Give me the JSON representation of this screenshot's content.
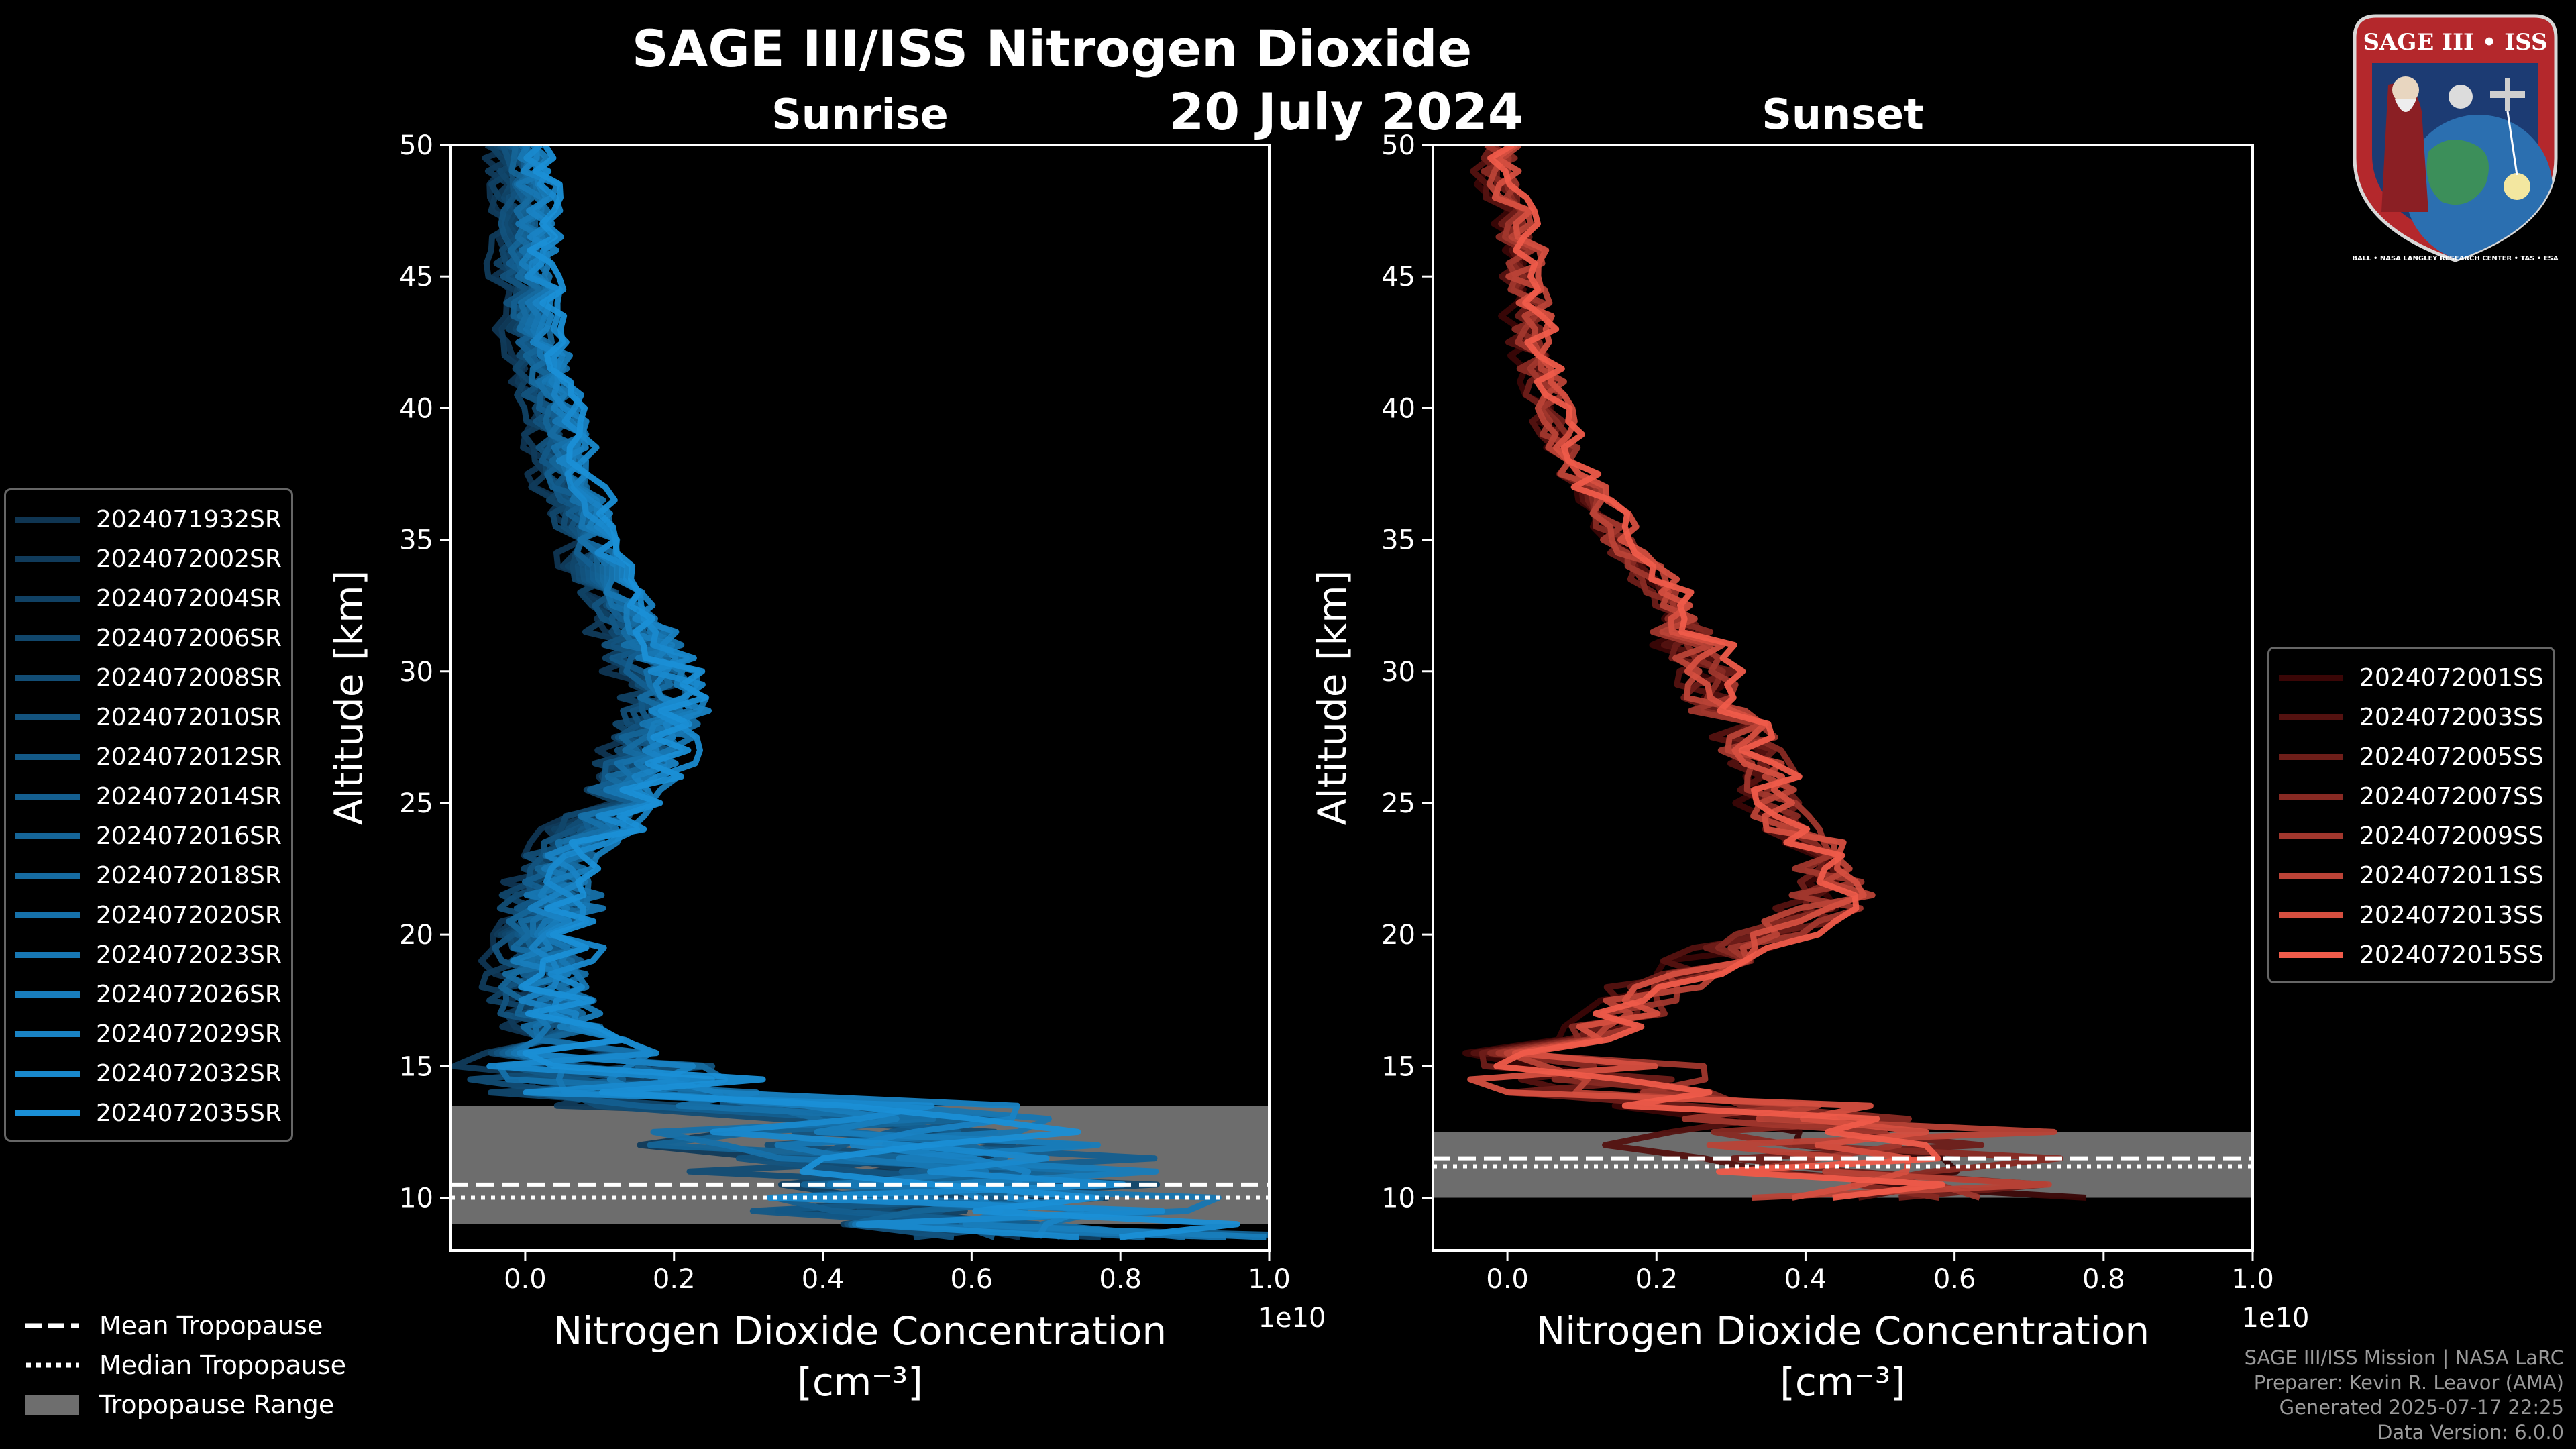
{
  "figure": {
    "title": "SAGE III/ISS Nitrogen Dioxide",
    "date": "20 July 2024",
    "credits": [
      "SAGE III/ISS Mission | NASA LaRC",
      "Preparer: Kevin R. Leavor (AMA)",
      "Generated 2025-07-17 22:25",
      "Data Version: 6.0.0"
    ],
    "logo": {
      "name": "SAGE III • ISS",
      "ring_text": "BALL • NASA LANGLEY RESEARCH CENTER • TAS • ESA",
      "colors": {
        "ring": "#b4282c",
        "inner": "#1c3b73",
        "text": "#ffffff"
      }
    }
  },
  "tropopause_legend": [
    {
      "label": "Mean Tropopause",
      "style": "dashed"
    },
    {
      "label": "Median Tropopause",
      "style": "dotted"
    },
    {
      "label": "Tropopause Range",
      "style": "band"
    }
  ],
  "chart_data": [
    {
      "type": "line",
      "panel": "sunrise",
      "title": "Sunrise",
      "xlabel": "Nitrogen Dioxide Concentration",
      "xlabel_units": "[cm⁻³]",
      "x_offset_label": "1e10",
      "ylabel": "Altitude [km]",
      "xlim": [
        -0.1,
        1.0
      ],
      "ylim": [
        8,
        50
      ],
      "xticks": [
        0.0,
        0.2,
        0.4,
        0.6,
        0.8,
        1.0
      ],
      "xtick_labels": [
        "0.0",
        "0.2",
        "0.4",
        "0.6",
        "0.8",
        "1.0"
      ],
      "yticks": [
        10,
        15,
        20,
        25,
        30,
        35,
        40,
        45,
        50
      ],
      "x_scale_note": "values in units of 1e10 cm^-3",
      "color_dark": "#0f3552",
      "color_light": "#1a8fd6",
      "tropopause": {
        "mean": 10.5,
        "median": 10.0,
        "range": [
          9.0,
          13.5
        ]
      },
      "mean_profile": {
        "altitude": [
          8.5,
          9,
          10,
          11,
          12,
          13,
          14,
          15,
          16,
          17,
          18,
          19,
          20,
          21,
          22,
          23,
          24,
          25,
          26,
          27,
          28,
          29,
          30,
          31,
          32,
          33,
          34,
          35,
          36,
          37,
          38,
          39,
          40,
          41,
          42,
          43,
          44,
          45,
          46,
          47,
          48,
          49,
          50
        ],
        "no2": [
          0.6,
          0.45,
          0.4,
          0.35,
          0.28,
          0.2,
          0.14,
          0.1,
          0.06,
          0.03,
          0.02,
          0.02,
          0.03,
          0.04,
          0.04,
          0.05,
          0.09,
          0.12,
          0.15,
          0.17,
          0.18,
          0.19,
          0.18,
          0.16,
          0.14,
          0.12,
          0.1,
          0.09,
          0.08,
          0.06,
          0.05,
          0.05,
          0.04,
          0.03,
          0.02,
          0.01,
          0.01,
          0.0,
          0.0,
          0.0,
          0.0,
          0.0,
          0.0
        ]
      },
      "series": [
        {
          "name": "2024071932SR"
        },
        {
          "name": "2024072002SR"
        },
        {
          "name": "2024072004SR"
        },
        {
          "name": "2024072006SR"
        },
        {
          "name": "2024072008SR"
        },
        {
          "name": "2024072010SR"
        },
        {
          "name": "2024072012SR"
        },
        {
          "name": "2024072014SR"
        },
        {
          "name": "2024072016SR"
        },
        {
          "name": "2024072018SR"
        },
        {
          "name": "2024072020SR"
        },
        {
          "name": "2024072023SR"
        },
        {
          "name": "2024072026SR"
        },
        {
          "name": "2024072029SR"
        },
        {
          "name": "2024072032SR"
        },
        {
          "name": "2024072035SR"
        }
      ]
    },
    {
      "type": "line",
      "panel": "sunset",
      "title": "Sunset",
      "xlabel": "Nitrogen Dioxide Concentration",
      "xlabel_units": "[cm⁻³]",
      "x_offset_label": "1e10",
      "ylabel": "Altitude [km]",
      "xlim": [
        -0.1,
        1.0
      ],
      "ylim": [
        8,
        50
      ],
      "xticks": [
        0.0,
        0.2,
        0.4,
        0.6,
        0.8,
        1.0
      ],
      "xtick_labels": [
        "0.0",
        "0.2",
        "0.4",
        "0.6",
        "0.8",
        "1.0"
      ],
      "yticks": [
        10,
        15,
        20,
        25,
        30,
        35,
        40,
        45,
        50
      ],
      "x_scale_note": "values in units of 1e10 cm^-3",
      "color_dark": "#3a0606",
      "color_light": "#ef5b4a",
      "tropopause": {
        "mean": 11.5,
        "median": 11.2,
        "range": [
          10.0,
          12.5
        ]
      },
      "mean_profile": {
        "altitude": [
          10,
          11,
          12,
          13,
          14,
          15,
          16,
          17,
          18,
          19,
          20,
          21,
          22,
          23,
          24,
          25,
          26,
          27,
          28,
          29,
          30,
          31,
          32,
          33,
          34,
          35,
          36,
          37,
          38,
          39,
          40,
          41,
          42,
          43,
          44,
          45,
          46,
          47,
          48,
          49,
          50
        ],
        "no2": [
          0.35,
          0.3,
          0.22,
          0.18,
          0.12,
          0.1,
          0.12,
          0.16,
          0.2,
          0.28,
          0.36,
          0.42,
          0.44,
          0.42,
          0.38,
          0.36,
          0.35,
          0.33,
          0.3,
          0.28,
          0.27,
          0.25,
          0.23,
          0.21,
          0.18,
          0.15,
          0.13,
          0.1,
          0.08,
          0.07,
          0.06,
          0.05,
          0.04,
          0.03,
          0.03,
          0.02,
          0.02,
          0.01,
          0.0,
          -0.01,
          -0.01
        ]
      },
      "series": [
        {
          "name": "2024072001SS"
        },
        {
          "name": "2024072003SS"
        },
        {
          "name": "2024072005SS"
        },
        {
          "name": "2024072007SS"
        },
        {
          "name": "2024072009SS"
        },
        {
          "name": "2024072011SS"
        },
        {
          "name": "2024072013SS"
        },
        {
          "name": "2024072015SS"
        }
      ]
    }
  ]
}
